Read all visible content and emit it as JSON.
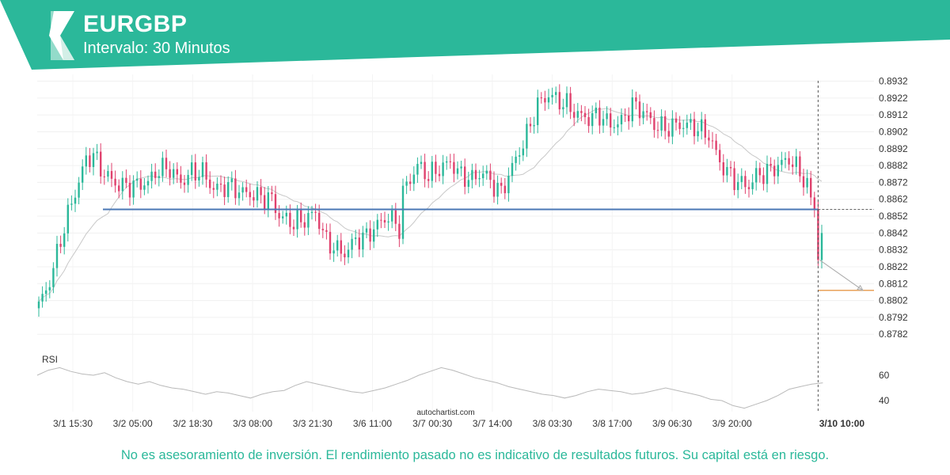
{
  "header": {
    "symbol": "EURGBP",
    "interval": "Intervalo: 30 Minutos",
    "band_color": "#2bb89a",
    "logo_icon": "autochartist-logo-icon"
  },
  "chart_data": {
    "type": "candlestick",
    "x_tick_labels": [
      "3/1 15:30",
      "3/2 05:00",
      "3/2 18:30",
      "3/3 08:00",
      "3/3 21:30",
      "3/6 11:00",
      "3/7 00:30",
      "3/7 14:00",
      "3/8 03:30",
      "3/8 17:00",
      "3/9 06:30",
      "3/9 20:00"
    ],
    "current_time_label": "3/10 10:00",
    "y_tick_labels": [
      "0.8932",
      "0.8922",
      "0.8912",
      "0.8902",
      "0.8892",
      "0.8882",
      "0.8872",
      "0.8862",
      "0.8852",
      "0.8842",
      "0.8832",
      "0.8822",
      "0.8812",
      "0.8802",
      "0.8792",
      "0.8782"
    ],
    "ylim": [
      0.8776,
      0.8936
    ],
    "support_level": 0.8856,
    "target_level": 0.8808,
    "forecast_from": 0.8826,
    "forecast_to": 0.8808,
    "close_price": 0.8842,
    "colors": {
      "up": "#2bb89a",
      "down": "#e0426e",
      "support": "#4a77b4",
      "target": "#e8a25a",
      "ma": "#c8c8c8",
      "rsi": "#b9b9b9"
    },
    "rsi": {
      "label": "RSI",
      "tick_labels": [
        "60",
        "40"
      ],
      "ylim": [
        30,
        75
      ],
      "points": [
        60,
        64,
        66,
        63,
        61,
        60,
        62,
        58,
        55,
        53,
        55,
        52,
        50,
        49,
        47,
        45,
        47,
        46,
        44,
        42,
        45,
        47,
        48,
        52,
        55,
        53,
        51,
        49,
        47,
        46,
        48,
        50,
        53,
        56,
        60,
        63,
        66,
        64,
        61,
        58,
        56,
        54,
        51,
        49,
        47,
        45,
        44,
        42,
        44,
        47,
        49,
        48,
        47,
        45,
        46,
        48,
        50,
        48,
        46,
        44,
        41,
        40,
        36,
        34,
        37,
        40,
        44,
        49,
        51,
        53,
        54
      ]
    },
    "watermark": "autochartist.com",
    "legend_position": "none",
    "grid": true
  },
  "disclaimer": "No es asesoramiento de inversión. El rendimiento pasado no es indicativo de resultados futuros. Su capital está en riesgo."
}
